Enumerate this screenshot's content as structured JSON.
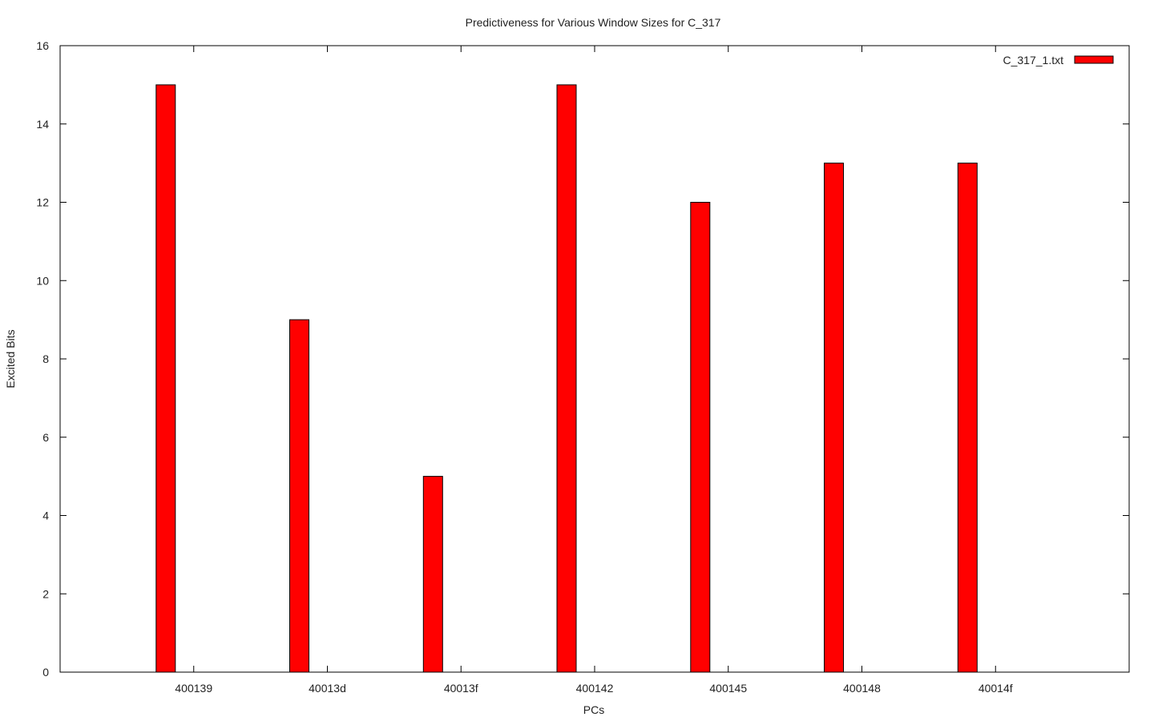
{
  "chart_data": {
    "type": "bar",
    "title": "Predictiveness for Various Window Sizes for C_317",
    "xlabel": "PCs",
    "ylabel": "Excited Bits",
    "categories": [
      "400139",
      "40013d",
      "40013f",
      "400142",
      "400145",
      "400148",
      "40014f"
    ],
    "series": [
      {
        "name": "C_317_1.txt",
        "color": "#ff0000",
        "values": [
          15,
          9,
          5,
          15,
          12,
          13,
          13
        ]
      }
    ],
    "ylim": [
      0,
      16
    ],
    "yticks": [
      0,
      2,
      4,
      6,
      8,
      10,
      12,
      14,
      16
    ],
    "grid": false,
    "legend_position": "top-right"
  }
}
